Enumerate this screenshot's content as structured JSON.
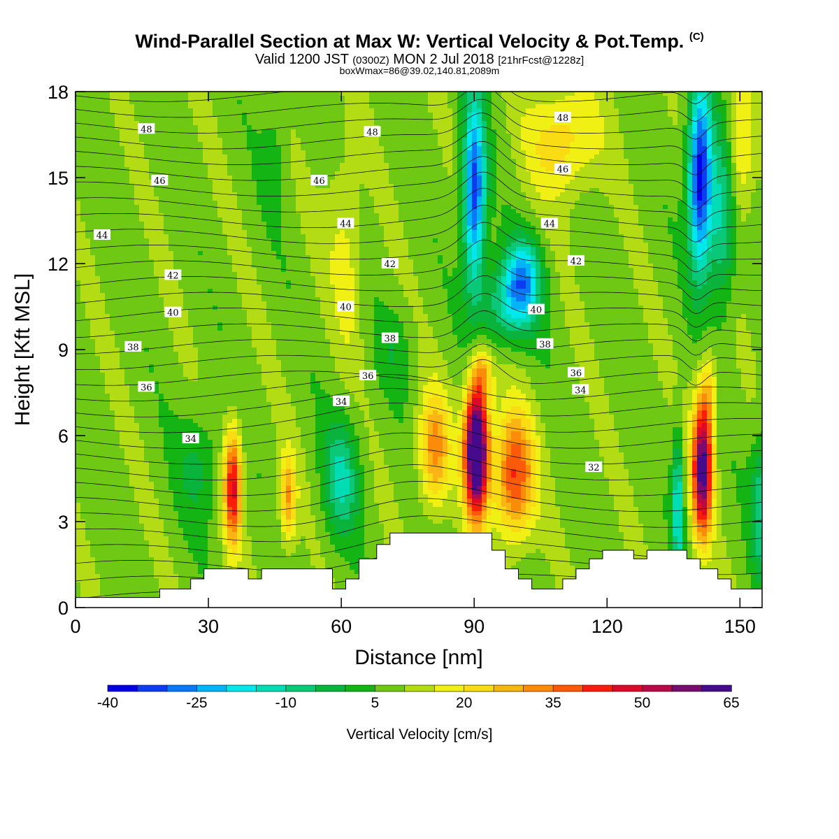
{
  "header": {
    "title": "Wind-Parallel Section at Max W: Vertical Velocity & Pot.Temp.",
    "title_mark": "(C)",
    "valid_prefix": "Valid 1200 JST",
    "valid_utc": "(0300Z)",
    "valid_date": "MON 2 Jul 2018",
    "valid_fcst": "[21hrFcst@1228z]",
    "box_info": "boxWmax=86@39.02,140.81,2089m"
  },
  "colorbar": {
    "label": "Vertical Velocity [cm/s]",
    "tick_labels": [
      "-40",
      "-25",
      "-10",
      "5",
      "20",
      "35",
      "50",
      "65"
    ],
    "colors": [
      "#0000e8",
      "#0a3cf0",
      "#0a78f5",
      "#00b4f8",
      "#00e8ee",
      "#00dcb4",
      "#0ac878",
      "#0ab43c",
      "#14b414",
      "#6ec814",
      "#b4dc14",
      "#f0f014",
      "#fadc14",
      "#fab414",
      "#fa8c0a",
      "#fa5a0a",
      "#fa1e0a",
      "#dc0a28",
      "#b40a46",
      "#7a0a6e",
      "#460a8c"
    ]
  },
  "chart_data": {
    "type": "heatmap",
    "title": "Wind-Parallel Section at Max W: Vertical Velocity & Pot.Temp.",
    "xlabel": "Distance [nm]",
    "ylabel": "Height [Kft MSL]",
    "xlim": [
      0,
      155
    ],
    "ylim": [
      0,
      18
    ],
    "x_ticks": [
      0,
      30,
      60,
      90,
      120,
      150
    ],
    "y_ticks": [
      0,
      3,
      6,
      9,
      12,
      15,
      18
    ],
    "color_variable": "Vertical Velocity [cm/s]",
    "color_levels": [
      -40,
      -35,
      -30,
      -25,
      -20,
      -15,
      -10,
      -5,
      0,
      5,
      10,
      15,
      20,
      25,
      30,
      35,
      40,
      45,
      50,
      55,
      60,
      65,
      70
    ],
    "contour_variable": "Pot.Temp.",
    "contour_labels": [
      {
        "text": "48",
        "x": 16,
        "y": 16.7
      },
      {
        "text": "48",
        "x": 67,
        "y": 16.6
      },
      {
        "text": "48",
        "x": 110,
        "y": 17.1
      },
      {
        "text": "46",
        "x": 19,
        "y": 14.9
      },
      {
        "text": "46",
        "x": 55,
        "y": 14.9
      },
      {
        "text": "46",
        "x": 110,
        "y": 15.3
      },
      {
        "text": "44",
        "x": 6,
        "y": 13.0
      },
      {
        "text": "44",
        "x": 61,
        "y": 13.4
      },
      {
        "text": "44",
        "x": 107,
        "y": 13.4
      },
      {
        "text": "42",
        "x": 22,
        "y": 11.6
      },
      {
        "text": "42",
        "x": 71,
        "y": 12.0
      },
      {
        "text": "42",
        "x": 113,
        "y": 12.1
      },
      {
        "text": "40",
        "x": 22,
        "y": 10.3
      },
      {
        "text": "40",
        "x": 61,
        "y": 10.5
      },
      {
        "text": "40",
        "x": 104,
        "y": 10.4
      },
      {
        "text": "38",
        "x": 13,
        "y": 9.1
      },
      {
        "text": "38",
        "x": 71,
        "y": 9.4
      },
      {
        "text": "38",
        "x": 106,
        "y": 9.2
      },
      {
        "text": "36",
        "x": 16,
        "y": 7.7
      },
      {
        "text": "36",
        "x": 66,
        "y": 8.1
      },
      {
        "text": "36",
        "x": 113,
        "y": 8.2
      },
      {
        "text": "34",
        "x": 26,
        "y": 5.9
      },
      {
        "text": "34",
        "x": 60,
        "y": 7.2
      },
      {
        "text": "34",
        "x": 114,
        "y": 7.6
      },
      {
        "text": "32",
        "x": 117,
        "y": 4.9
      }
    ],
    "terrain": [
      [
        0,
        0.35
      ],
      [
        19,
        0.35
      ],
      [
        19,
        0.65
      ],
      [
        26,
        0.65
      ],
      [
        26,
        1.0
      ],
      [
        29,
        1.0
      ],
      [
        29,
        1.35
      ],
      [
        39,
        1.35
      ],
      [
        39,
        1.0
      ],
      [
        42,
        1.0
      ],
      [
        42,
        1.35
      ],
      [
        58,
        1.35
      ],
      [
        58,
        0.65
      ],
      [
        61,
        0.65
      ],
      [
        61,
        1.0
      ],
      [
        64,
        1.0
      ],
      [
        64,
        1.7
      ],
      [
        68,
        1.7
      ],
      [
        68,
        2.2
      ],
      [
        71,
        2.2
      ],
      [
        71,
        2.6
      ],
      [
        89,
        2.6
      ],
      [
        89,
        2.6
      ],
      [
        94,
        2.6
      ],
      [
        94,
        2.0
      ],
      [
        97,
        2.0
      ],
      [
        97,
        1.35
      ],
      [
        100,
        1.35
      ],
      [
        100,
        1.0
      ],
      [
        103,
        1.0
      ],
      [
        103,
        0.65
      ],
      [
        110,
        0.65
      ],
      [
        110,
        1.0
      ],
      [
        113,
        1.0
      ],
      [
        113,
        1.35
      ],
      [
        116,
        1.35
      ],
      [
        116,
        1.7
      ],
      [
        119,
        1.7
      ],
      [
        119,
        2.0
      ],
      [
        126,
        2.0
      ],
      [
        126,
        1.7
      ],
      [
        129,
        1.7
      ],
      [
        129,
        2.0
      ],
      [
        138,
        2.0
      ],
      [
        138,
        1.7
      ],
      [
        141,
        1.7
      ],
      [
        141,
        1.35
      ],
      [
        145,
        1.35
      ],
      [
        145,
        1.0
      ],
      [
        148,
        1.0
      ],
      [
        148,
        0.65
      ],
      [
        155,
        0.65
      ]
    ],
    "features": [
      {
        "kind": "updraft",
        "x": 90.5,
        "y": 5.5,
        "w_max": 70
      },
      {
        "kind": "updraft",
        "x": 141.5,
        "y": 4.8,
        "w_max": 50
      },
      {
        "kind": "updraft",
        "x": 35.5,
        "y": 4.2,
        "w_max": 35
      },
      {
        "kind": "updraft",
        "x": 99,
        "y": 4.6,
        "w_max": 35
      },
      {
        "kind": "updraft",
        "x": 81,
        "y": 5.5,
        "w_max": 25
      },
      {
        "kind": "updraft",
        "x": 48,
        "y": 3.8,
        "w_max": 20
      },
      {
        "kind": "downdraft",
        "x": 141,
        "y": 15.0,
        "w_min": -40
      },
      {
        "kind": "downdraft",
        "x": 90,
        "y": 14.5,
        "w_min": -35
      },
      {
        "kind": "downdraft",
        "x": 60,
        "y": 4.5,
        "w_min": -15
      },
      {
        "kind": "downdraft",
        "x": 136,
        "y": 3.5,
        "w_min": -20
      }
    ]
  }
}
